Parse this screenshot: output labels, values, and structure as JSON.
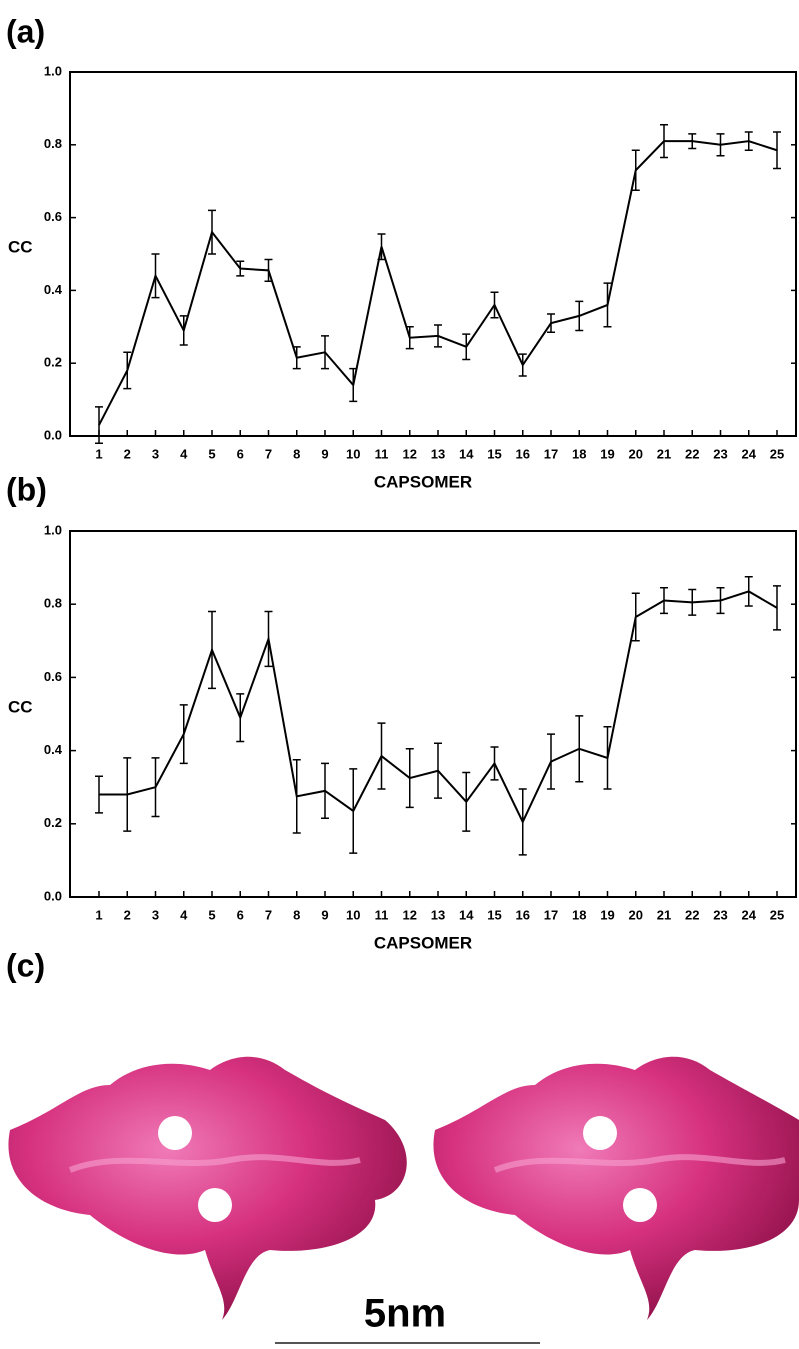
{
  "panel_labels": [
    "(a)",
    "(b)",
    "(c)"
  ],
  "scale_bar": "5nm",
  "chart_data": [
    {
      "type": "line",
      "x_label": "CAPSOMER",
      "y_label": "CC",
      "color": "#000000",
      "categories": [
        "1",
        "2",
        "3",
        "4",
        "5",
        "6",
        "7",
        "8",
        "9",
        "10",
        "11",
        "12",
        "13",
        "14",
        "15",
        "16",
        "17",
        "18",
        "19",
        "20",
        "21",
        "22",
        "23",
        "24",
        "25"
      ],
      "values": [
        0.03,
        0.18,
        0.44,
        0.29,
        0.56,
        0.46,
        0.455,
        0.215,
        0.23,
        0.14,
        0.52,
        0.27,
        0.275,
        0.245,
        0.36,
        0.195,
        0.31,
        0.33,
        0.36,
        0.73,
        0.81,
        0.81,
        0.8,
        0.81,
        0.785
      ],
      "errors": [
        0.05,
        0.05,
        0.06,
        0.04,
        0.06,
        0.02,
        0.03,
        0.03,
        0.045,
        0.045,
        0.035,
        0.03,
        0.03,
        0.035,
        0.035,
        0.03,
        0.025,
        0.04,
        0.06,
        0.055,
        0.045,
        0.02,
        0.03,
        0.025,
        0.05
      ],
      "ylim": [
        0,
        1
      ],
      "yticks": [
        {
          "value": 0,
          "label": "0.0"
        },
        {
          "value": 0.2,
          "label": "0.2"
        },
        {
          "value": 0.4,
          "label": "0.4"
        },
        {
          "value": 0.6,
          "label": "0.6"
        },
        {
          "value": 0.8,
          "label": "0.8"
        },
        {
          "value": 1,
          "label": "1.0"
        }
      ]
    },
    {
      "type": "line",
      "x_label": "CAPSOMER",
      "y_label": "CC",
      "color": "#000000",
      "categories": [
        "1",
        "2",
        "3",
        "4",
        "5",
        "6",
        "7",
        "8",
        "9",
        "10",
        "11",
        "12",
        "13",
        "14",
        "15",
        "16",
        "17",
        "18",
        "19",
        "20",
        "21",
        "22",
        "23",
        "24",
        "25"
      ],
      "values": [
        0.28,
        0.28,
        0.3,
        0.445,
        0.675,
        0.49,
        0.705,
        0.275,
        0.29,
        0.235,
        0.385,
        0.325,
        0.345,
        0.26,
        0.365,
        0.205,
        0.37,
        0.405,
        0.38,
        0.765,
        0.81,
        0.805,
        0.81,
        0.835,
        0.79
      ],
      "errors": [
        0.05,
        0.1,
        0.08,
        0.08,
        0.105,
        0.065,
        0.075,
        0.1,
        0.075,
        0.115,
        0.09,
        0.08,
        0.075,
        0.08,
        0.045,
        0.09,
        0.075,
        0.09,
        0.085,
        0.065,
        0.035,
        0.035,
        0.035,
        0.04,
        0.06
      ],
      "ylim": [
        0,
        1
      ],
      "yticks": [
        {
          "value": 0,
          "label": "0.0"
        },
        {
          "value": 0.2,
          "label": "0.2"
        },
        {
          "value": 0.4,
          "label": "0.4"
        },
        {
          "value": 0.6,
          "label": "0.6"
        },
        {
          "value": 0.8,
          "label": "0.8"
        },
        {
          "value": 1,
          "label": "1.0"
        }
      ]
    }
  ]
}
